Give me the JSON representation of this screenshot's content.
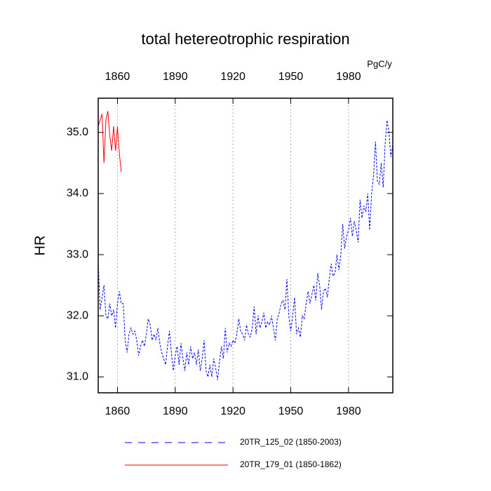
{
  "chart_data": {
    "type": "line",
    "title": "total hetereotrophic respiration",
    "y_label": "HR",
    "top_right_label": "PgC/y",
    "xlim": [
      1850,
      2003
    ],
    "ylim": [
      30.74,
      35.56
    ],
    "xticks": [
      1860,
      1890,
      1920,
      1950,
      1980
    ],
    "yticks": [
      {
        "value": 31,
        "label": "31.0"
      },
      {
        "value": 32,
        "label": "32.0"
      },
      {
        "value": 33,
        "label": "33.0"
      },
      {
        "value": 34,
        "label": "34.0"
      },
      {
        "value": 35,
        "label": "35.0"
      }
    ],
    "bottom_tick_color": "#ff0000",
    "top_tick_color": "#0000ff",
    "grid": true,
    "series": [
      {
        "name": "20TR_125_02 (1850-2003)",
        "color": "#0000ff",
        "dash": true,
        "x": [
          1850,
          1851,
          1852,
          1853,
          1854,
          1855,
          1856,
          1857,
          1858,
          1859,
          1860,
          1861,
          1862,
          1863,
          1864,
          1865,
          1866,
          1867,
          1868,
          1869,
          1870,
          1871,
          1872,
          1873,
          1874,
          1875,
          1876,
          1877,
          1878,
          1879,
          1880,
          1881,
          1882,
          1883,
          1884,
          1885,
          1886,
          1887,
          1888,
          1889,
          1890,
          1891,
          1892,
          1893,
          1894,
          1895,
          1896,
          1897,
          1898,
          1899,
          1900,
          1901,
          1902,
          1903,
          1904,
          1905,
          1906,
          1907,
          1908,
          1909,
          1910,
          1911,
          1912,
          1913,
          1914,
          1915,
          1916,
          1917,
          1918,
          1919,
          1920,
          1921,
          1922,
          1923,
          1924,
          1925,
          1926,
          1927,
          1928,
          1929,
          1930,
          1931,
          1932,
          1933,
          1934,
          1935,
          1936,
          1937,
          1938,
          1939,
          1940,
          1941,
          1942,
          1943,
          1944,
          1945,
          1946,
          1947,
          1948,
          1949,
          1950,
          1951,
          1952,
          1953,
          1954,
          1955,
          1956,
          1957,
          1958,
          1959,
          1960,
          1961,
          1962,
          1963,
          1964,
          1965,
          1966,
          1967,
          1968,
          1969,
          1970,
          1971,
          1972,
          1973,
          1974,
          1975,
          1976,
          1977,
          1978,
          1979,
          1980,
          1981,
          1982,
          1983,
          1984,
          1985,
          1986,
          1987,
          1988,
          1989,
          1990,
          1991,
          1992,
          1993,
          1994,
          1995,
          1996,
          1997,
          1998,
          1999,
          2000,
          2001,
          2002,
          2003
        ],
        "values": [
          32.9,
          32.1,
          32.3,
          32.5,
          32.0,
          31.95,
          32.2,
          32.0,
          32.1,
          31.8,
          32.2,
          32.4,
          32.2,
          32.2,
          31.6,
          31.4,
          31.7,
          31.8,
          31.7,
          31.75,
          31.6,
          31.35,
          31.5,
          31.6,
          31.5,
          31.7,
          31.95,
          31.85,
          31.6,
          31.7,
          31.6,
          31.8,
          31.55,
          31.4,
          31.3,
          31.2,
          31.5,
          31.75,
          31.4,
          31.1,
          31.35,
          31.5,
          31.2,
          31.55,
          31.3,
          31.1,
          31.4,
          31.2,
          31.5,
          31.3,
          31.4,
          31.2,
          31.45,
          31.1,
          31.3,
          31.6,
          31.1,
          31.0,
          31.2,
          31.0,
          31.3,
          31.15,
          30.95,
          31.25,
          31.5,
          31.3,
          31.8,
          31.4,
          31.55,
          31.5,
          31.6,
          31.55,
          31.7,
          31.95,
          31.75,
          31.7,
          31.6,
          31.85,
          31.7,
          31.65,
          31.8,
          32.15,
          31.7,
          32.0,
          31.8,
          31.9,
          32.05,
          31.8,
          31.9,
          31.85,
          32.0,
          31.8,
          31.6,
          31.95,
          32.05,
          32.2,
          32.25,
          32.1,
          32.6,
          32.0,
          31.75,
          32.0,
          32.3,
          31.7,
          31.8,
          31.65,
          32.0,
          31.95,
          32.2,
          32.4,
          32.2,
          32.35,
          32.5,
          32.25,
          32.7,
          32.5,
          32.1,
          32.4,
          32.45,
          32.3,
          32.6,
          32.85,
          32.65,
          32.7,
          33.0,
          32.75,
          33.0,
          33.5,
          33.1,
          33.3,
          33.4,
          33.6,
          33.3,
          33.55,
          33.4,
          33.2,
          33.9,
          33.6,
          33.8,
          33.7,
          34.0,
          33.4,
          34.0,
          34.3,
          34.85,
          34.2,
          34.15,
          34.5,
          34.1,
          34.8,
          35.2,
          35.0,
          34.6,
          34.8
        ]
      },
      {
        "name": "20TR_179_01 (1850-1862)",
        "color": "#ff0000",
        "dash": false,
        "x": [
          1850,
          1851,
          1852,
          1853,
          1854,
          1855,
          1856,
          1857,
          1858,
          1859,
          1860,
          1861,
          1862
        ],
        "values": [
          35.1,
          35.2,
          35.3,
          34.5,
          35.2,
          35.35,
          34.95,
          34.7,
          35.1,
          34.7,
          35.1,
          34.65,
          34.35
        ]
      }
    ]
  }
}
